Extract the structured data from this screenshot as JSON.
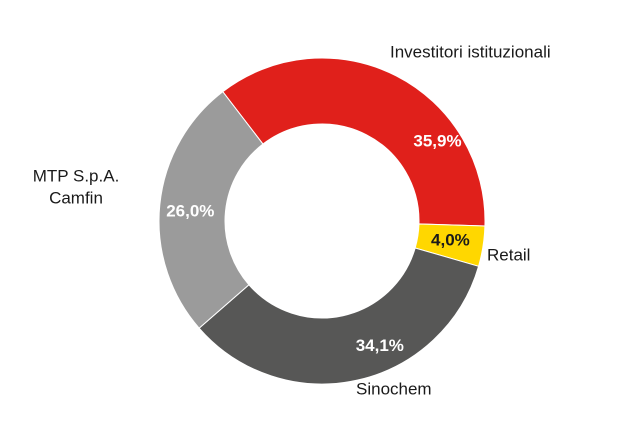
{
  "chart_data": {
    "type": "pie",
    "donut": true,
    "slices": [
      {
        "category_lines": [
          "Investitori istituzionali"
        ],
        "value": 35.9,
        "label": "35,9%",
        "color": "#e0201b",
        "label_color": "#ffffff"
      },
      {
        "category_lines": [
          "Retail"
        ],
        "value": 4.0,
        "label": "4,0%",
        "color": "#ffd700",
        "label_color": "#1a1a1a"
      },
      {
        "category_lines": [
          "Sinochem"
        ],
        "value": 34.1,
        "label": "34,1%",
        "color": "#575756",
        "label_color": "#ffffff"
      },
      {
        "category_lines": [
          "MTP S.p.A.",
          "Camfin"
        ],
        "value": 26.0,
        "label": "26,0%",
        "color": "#9b9b9b",
        "label_color": "#ffffff"
      }
    ]
  }
}
